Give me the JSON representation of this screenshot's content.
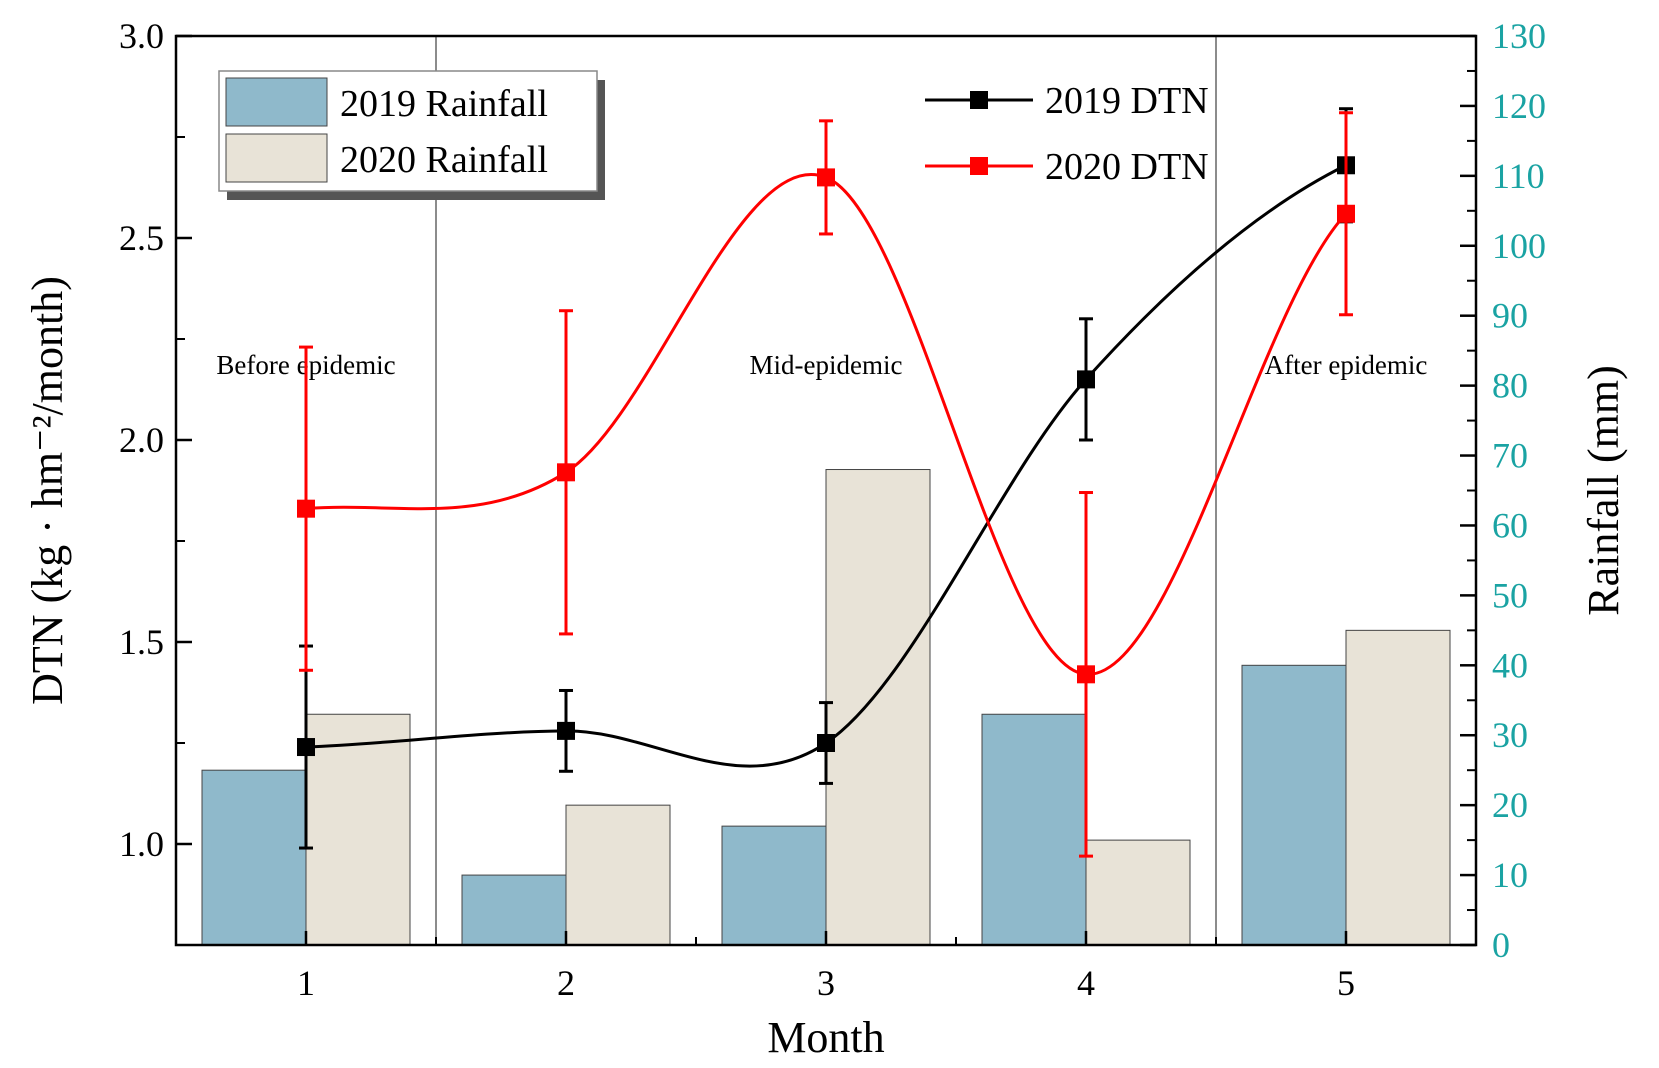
{
  "chart_data": {
    "type": "bar+line",
    "title": "",
    "xlabel": "Month",
    "ylabel_left": "DTN (kg · hm⁻²/month)",
    "ylabel_right": "Rainfall (mm)",
    "categories": [
      "1",
      "2",
      "3",
      "4",
      "5"
    ],
    "ylim_left": [
      0.75,
      3.0
    ],
    "yticks_left": [
      "1.0",
      "1.5",
      "2.0",
      "2.5",
      "3.0"
    ],
    "ylim_right": [
      0,
      130
    ],
    "yticks_right": [
      "0",
      "10",
      "20",
      "30",
      "40",
      "50",
      "60",
      "70",
      "80",
      "90",
      "100",
      "110",
      "120",
      "130"
    ],
    "phases": [
      "Before epidemic",
      "Mid-epidemic",
      "After epidemic"
    ],
    "bars": [
      {
        "name": "2019 Rainfall",
        "color": "#8fb9cb",
        "axis": "right",
        "values": [
          25,
          10,
          17,
          33,
          40
        ]
      },
      {
        "name": "2020 Rainfall",
        "color": "#e8e3d7",
        "axis": "right",
        "values": [
          33,
          20,
          68,
          15,
          45
        ]
      }
    ],
    "lines": [
      {
        "name": "2019 DTN",
        "color": "#000000",
        "axis": "left",
        "values": [
          1.24,
          1.28,
          1.25,
          2.15,
          2.68
        ],
        "errors": [
          0.25,
          0.1,
          0.1,
          0.15,
          0.14
        ]
      },
      {
        "name": "2020 DTN",
        "color": "#ff0000",
        "axis": "left",
        "values": [
          1.83,
          1.92,
          2.65,
          1.42,
          2.56
        ],
        "errors": [
          0.4,
          0.4,
          0.14,
          0.45,
          0.25
        ]
      }
    ],
    "legend_bars_position": "top-left",
    "legend_lines_position": "top-center",
    "colors": {
      "left_axis": "#000000",
      "right_axis": "#1aa3a3"
    }
  }
}
